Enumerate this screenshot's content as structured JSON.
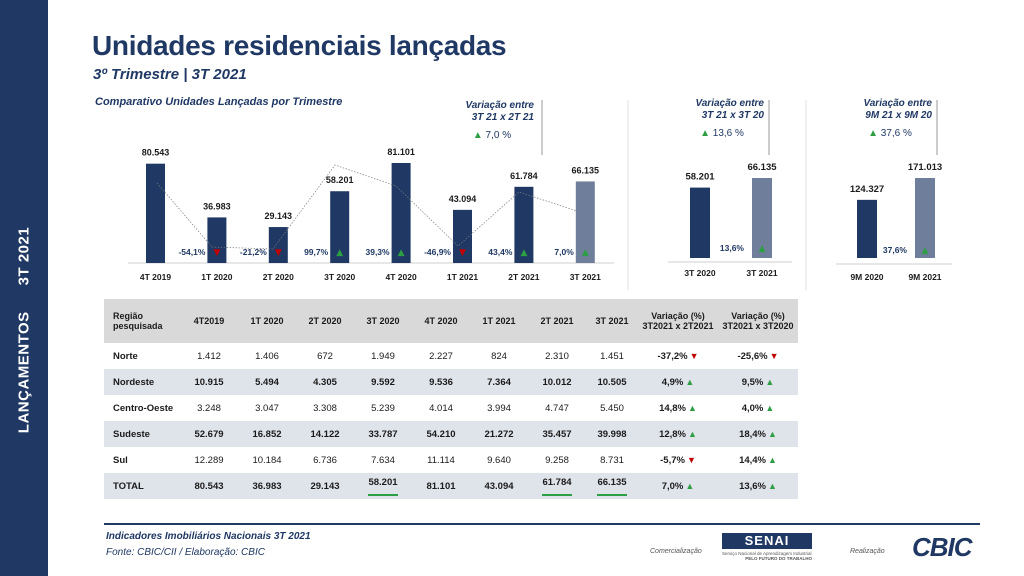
{
  "sidebar": {
    "left": "LANÇAMENTOS",
    "right": "3T 2021"
  },
  "header": {
    "title": "Unidades residenciais lançadas",
    "subtitle": "3º Trimestre | 3T 2021"
  },
  "chart_title": "Comparativo Unidades Lançadas por Trimestre",
  "variations": {
    "qoq": {
      "line1": "Variação entre",
      "line2": "3T 21 x 2T 21",
      "pct": "7,0 %"
    },
    "yoy": {
      "line1": "Variação entre",
      "line2": "3T 21 x 3T 20",
      "pct": "13,6 %"
    },
    "nine": {
      "line1": "Variação entre",
      "line2": "9M 21 x 9M 20",
      "pct": "37,6 %"
    }
  },
  "colors": {
    "navy": "#1f3864",
    "highlight": "#6f7f9b",
    "up": "#2e9e44",
    "down": "#c00000"
  },
  "chart_data": [
    {
      "type": "bar",
      "title": "Comparativo Unidades Lançadas por Trimestre",
      "categories": [
        "4T 2019",
        "1T 2020",
        "2T 2020",
        "3T 2020",
        "4T 2020",
        "1T 2021",
        "2T 2021",
        "3T 2021"
      ],
      "values": [
        80543,
        36983,
        29143,
        58201,
        81101,
        43094,
        61784,
        66135
      ],
      "value_labels": [
        "80.543",
        "36.983",
        "29.143",
        "58.201",
        "81.101",
        "43.094",
        "61.784",
        "66.135"
      ],
      "variation_labels": [
        "",
        "-54,1%",
        "-21,2%",
        "99,7%",
        "39,3%",
        "-46,9%",
        "43,4%",
        "7,0%"
      ],
      "variation_direction": [
        "",
        "down",
        "down",
        "up",
        "up",
        "down",
        "up",
        "up"
      ],
      "highlight_index": 7,
      "ylim": [
        0,
        90000
      ]
    },
    {
      "type": "bar",
      "categories": [
        "3T 2020",
        "3T 2021"
      ],
      "values": [
        58201,
        66135
      ],
      "value_labels": [
        "58.201",
        "66.135"
      ],
      "variation_label": "13,6%",
      "ylim": [
        0,
        90000
      ]
    },
    {
      "type": "bar",
      "categories": [
        "9M 2020",
        "9M 2021"
      ],
      "values": [
        124327,
        171013
      ],
      "value_labels": [
        "124.327",
        "171.013"
      ],
      "variation_label": "37,6%",
      "ylim": [
        0,
        220000
      ]
    }
  ],
  "table": {
    "headers": [
      "Região pesquisada",
      "4T2019",
      "1T 2020",
      "2T 2020",
      "3T 2020",
      "4T 2020",
      "1T 2021",
      "2T 2021",
      "3T 2021",
      "Variação (%) 3T2021 x 2T2021",
      "Variação (%) 3T2021 x 3T2020"
    ],
    "rows": [
      {
        "region": "Norte",
        "cells": [
          "1.412",
          "1.406",
          "672",
          "1.949",
          "2.227",
          "824",
          "2.310",
          "1.451"
        ],
        "var1": "-37,2%",
        "dir1": "down",
        "var2": "-25,6%",
        "dir2": "down"
      },
      {
        "region": "Nordeste",
        "cells": [
          "10.915",
          "5.494",
          "4.305",
          "9.592",
          "9.536",
          "7.364",
          "10.012",
          "10.505"
        ],
        "var1": "4,9%",
        "dir1": "up",
        "var2": "9,5%",
        "dir2": "up"
      },
      {
        "region": "Centro-Oeste",
        "cells": [
          "3.248",
          "3.047",
          "3.308",
          "5.239",
          "4.014",
          "3.994",
          "4.747",
          "5.450"
        ],
        "var1": "14,8%",
        "dir1": "up",
        "var2": "4,0%",
        "dir2": "up"
      },
      {
        "region": "Sudeste",
        "cells": [
          "52.679",
          "16.852",
          "14.122",
          "33.787",
          "54.210",
          "21.272",
          "35.457",
          "39.998"
        ],
        "var1": "12,8%",
        "dir1": "up",
        "var2": "18,4%",
        "dir2": "up"
      },
      {
        "region": "Sul",
        "cells": [
          "12.289",
          "10.184",
          "6.736",
          "7.634",
          "11.114",
          "9.640",
          "9.258",
          "8.731"
        ],
        "var1": "-5,7%",
        "dir1": "down",
        "var2": "14,4%",
        "dir2": "up"
      },
      {
        "region": "TOTAL",
        "cells": [
          "80.543",
          "36.983",
          "29.143",
          "58.201",
          "81.101",
          "43.094",
          "61.784",
          "66.135"
        ],
        "var1": "7,0%",
        "dir1": "up",
        "var2": "13,6%",
        "dir2": "up"
      }
    ]
  },
  "footer": {
    "source_title": "Indicadores Imobiliários Nacionais 3T 2021",
    "source": "Fonte: CBIC/CII / Elaboração: CBIC",
    "comercializacao": "Comercialização",
    "realizacao": "Realização",
    "senai_logo": "SENAI",
    "senai_line1": "Serviço Nacional de Aprendizagem Industrial",
    "senai_line2": "PELO FUTURO DO TRABALHO",
    "cbic_logo": "CBIC"
  }
}
